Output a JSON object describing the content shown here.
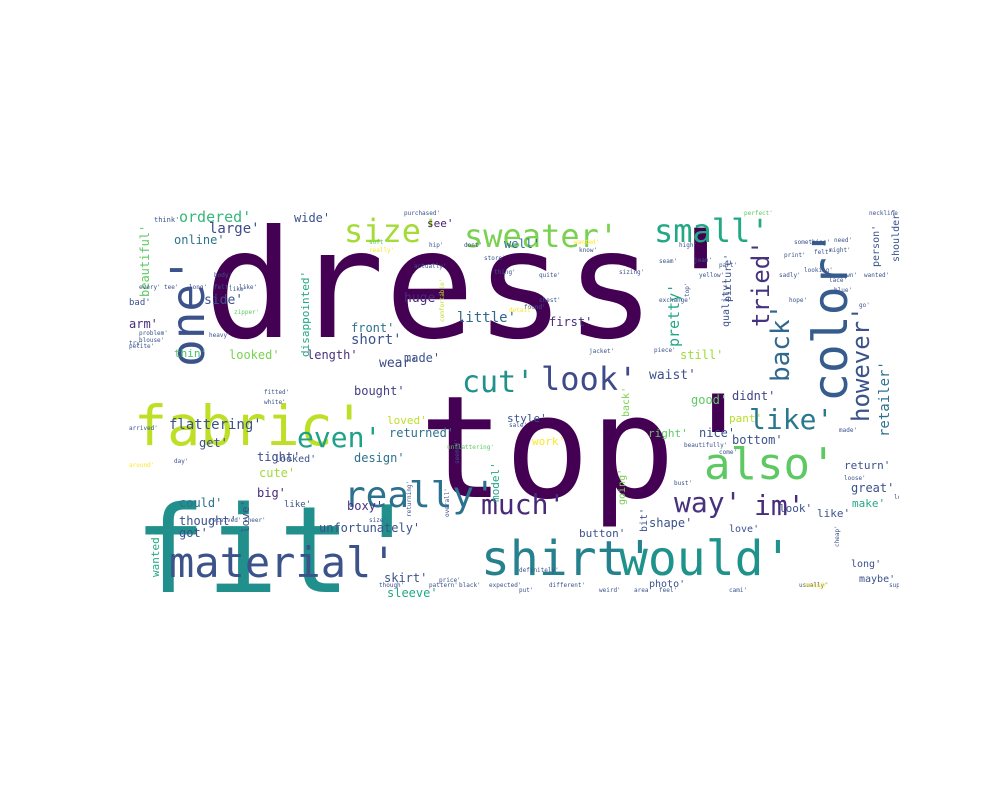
{
  "figure": {
    "words": [
      {
        "text": "dress'",
        "color": "#440154"
      },
      {
        "text": "top'",
        "color": "#440154"
      },
      {
        "text": "fit'",
        "color": "#21908c"
      },
      {
        "text": "fabric'",
        "color": "#bddf26"
      },
      {
        "text": "shirt'",
        "color": "#26818e"
      },
      {
        "text": "would'",
        "color": "#20928c"
      },
      {
        "text": "material'",
        "color": "#3b528b"
      },
      {
        "text": "color'",
        "color": "#365c8d"
      },
      {
        "text": "one'",
        "color": "#3b528b"
      },
      {
        "text": "also'",
        "color": "#5ec962"
      },
      {
        "text": "sweater'",
        "color": "#7ad151"
      },
      {
        "text": "small'",
        "color": "#22a884"
      },
      {
        "text": "size'",
        "color": "#a5db36"
      },
      {
        "text": "really'",
        "color": "#2c728e"
      },
      {
        "text": "much'",
        "color": "#482878"
      },
      {
        "text": "look'",
        "color": "#3e4a89"
      },
      {
        "text": "cut'",
        "color": "#21918c"
      },
      {
        "text": "way'",
        "color": "#46327e"
      },
      {
        "text": "im'",
        "color": "#472c7a"
      },
      {
        "text": "like'",
        "color": "#2a788e"
      },
      {
        "text": "even'",
        "color": "#1fa088"
      },
      {
        "text": "back'",
        "color": "#31688e"
      },
      {
        "text": "tried'",
        "color": "#46337f"
      },
      {
        "text": "however'",
        "color": "#3b528b"
      },
      {
        "text": "retailer'",
        "color": "#2c728e"
      },
      {
        "text": "ordered'",
        "color": "#35b779"
      },
      {
        "text": "large'",
        "color": "#3e4989"
      },
      {
        "text": "online'",
        "color": "#2c738e"
      },
      {
        "text": "wide'",
        "color": "#3b528b"
      },
      {
        "text": "beautiful'",
        "color": "#5ec962"
      },
      {
        "text": "side'",
        "color": "#3a538b"
      },
      {
        "text": "arm'",
        "color": "#472d7b"
      },
      {
        "text": "thin'",
        "color": "#4ac16d"
      },
      {
        "text": "short'",
        "color": "#3b528b"
      },
      {
        "text": "front'",
        "color": "#2c728e"
      },
      {
        "text": "huge'",
        "color": "#472a7a"
      },
      {
        "text": "little'",
        "color": "#31688e"
      },
      {
        "text": "pretty'",
        "color": "#22a884"
      },
      {
        "text": "well'",
        "color": "#2c728e"
      },
      {
        "text": "see'",
        "color": "#482173"
      },
      {
        "text": "quality'",
        "color": "#3b528b"
      },
      {
        "text": "first'",
        "color": "#472c7a"
      },
      {
        "text": "wear'",
        "color": "#3e4a89"
      },
      {
        "text": "made'",
        "color": "#3b528b"
      },
      {
        "text": "length'",
        "color": "#46327e"
      },
      {
        "text": "looked'",
        "color": "#7ad151"
      },
      {
        "text": "still'",
        "color": "#a0da39"
      },
      {
        "text": "waist'",
        "color": "#3b528b"
      },
      {
        "text": "didnt'",
        "color": "#414487"
      },
      {
        "text": "good'",
        "color": "#5ec962"
      },
      {
        "text": "bought'",
        "color": "#433e85"
      },
      {
        "text": "loved'",
        "color": "#bddf26"
      },
      {
        "text": "style'",
        "color": "#3b528b"
      },
      {
        "text": "flattering'",
        "color": "#3b528b"
      },
      {
        "text": "returned'",
        "color": "#2c728e"
      },
      {
        "text": "nice'",
        "color": "#3b528b"
      },
      {
        "text": "pant'",
        "color": "#b5de2b"
      },
      {
        "text": "bottom'",
        "color": "#3b528b"
      },
      {
        "text": "get'",
        "color": "#3b528b"
      },
      {
        "text": "design'",
        "color": "#2c728e"
      },
      {
        "text": "tight'",
        "color": "#3e4a89"
      },
      {
        "text": "work'",
        "color": "#fde725"
      },
      {
        "text": "right'",
        "color": "#5ec962"
      },
      {
        "text": "return'",
        "color": "#3b528b"
      },
      {
        "text": "great'",
        "color": "#3b528b"
      },
      {
        "text": "make'",
        "color": "#22a884"
      },
      {
        "text": "could'",
        "color": "#2c728e"
      },
      {
        "text": "big'",
        "color": "#482878"
      },
      {
        "text": "boxy'",
        "color": "#46327e"
      },
      {
        "text": "cute'",
        "color": "#a0da39"
      },
      {
        "text": "thought'",
        "color": "#3b528b"
      },
      {
        "text": "love'",
        "color": "#3b528b"
      },
      {
        "text": "got'",
        "color": "#3b528b"
      },
      {
        "text": "unfortunately'",
        "color": "#3b528b"
      },
      {
        "text": "skirt'",
        "color": "#3b528b"
      },
      {
        "text": "sleeve'",
        "color": "#22a884"
      },
      {
        "text": "button'",
        "color": "#3b528b"
      },
      {
        "text": "shape'",
        "color": "#3b528b"
      },
      {
        "text": "look'",
        "color": "#3b528b"
      },
      {
        "text": "like'",
        "color": "#3b528b"
      },
      {
        "text": "long'",
        "color": "#3b528b"
      },
      {
        "text": "maybe'",
        "color": "#3b528b"
      },
      {
        "text": "wanted'",
        "color": "#22a884"
      },
      {
        "text": "photo'",
        "color": "#3b528b"
      },
      {
        "text": "person'",
        "color": "#3b528b"
      },
      {
        "text": "shoulder'",
        "color": "#3b528b"
      },
      {
        "text": "picture'",
        "color": "#3b528b"
      },
      {
        "text": "disappointed'",
        "color": "#22a884"
      },
      {
        "text": "model'",
        "color": "#22a884"
      },
      {
        "text": "going'",
        "color": "#7ad151"
      },
      {
        "text": "back'",
        "color": "#7ad151"
      },
      {
        "text": "bit'",
        "color": "#3b528b"
      },
      {
        "text": "love'",
        "color": "#3b528b"
      },
      {
        "text": "looked'",
        "color": "#3b528b"
      },
      {
        "text": "like'",
        "color": "#3b528b"
      },
      {
        "text": "bad'",
        "color": "#3b528b"
      },
      {
        "text": "think'",
        "color": "#3b528b"
      },
      {
        "text": "soft'",
        "color": "#5ec962"
      },
      {
        "text": "really'",
        "color": "#fde725"
      },
      {
        "text": "wanted'",
        "color": "#fde725"
      },
      {
        "text": "purchased'",
        "color": "#3b528b"
      },
      {
        "text": "perfect'",
        "color": "#5ec962"
      },
      {
        "text": "neckline'",
        "color": "#3b528b"
      },
      {
        "text": "something'",
        "color": "#3b528b"
      },
      {
        "text": "felt'",
        "color": "#3b528b"
      },
      {
        "text": "like'",
        "color": "#3b528b"
      },
      {
        "text": "zipper'",
        "color": "#5ec962"
      },
      {
        "text": "actually'",
        "color": "#3b528b"
      },
      {
        "text": "thing'",
        "color": "#3b528b"
      },
      {
        "text": "found'",
        "color": "#3b528b"
      },
      {
        "text": "jacket'",
        "color": "#3b528b"
      },
      {
        "text": "comfortable'",
        "color": "#bddf26"
      },
      {
        "text": "problem'",
        "color": "#3b528b"
      },
      {
        "text": "petite'",
        "color": "#3b528b"
      },
      {
        "text": "fitted'",
        "color": "#3b528b"
      },
      {
        "text": "white'",
        "color": "#3b528b"
      },
      {
        "text": "arrived'",
        "color": "#3b528b"
      },
      {
        "text": "day'",
        "color": "#3b528b"
      },
      {
        "text": "around'",
        "color": "#fde725"
      },
      {
        "text": "received'",
        "color": "#3b528b"
      },
      {
        "text": "sheer'",
        "color": "#3b528b"
      },
      {
        "text": "seemed'",
        "color": "#3b528b"
      },
      {
        "text": "feel'",
        "color": "#3b528b"
      },
      {
        "text": "weird'",
        "color": "#3b528b"
      },
      {
        "text": "usually'",
        "color": "#3b528b"
      },
      {
        "text": "expected'",
        "color": "#3b528b"
      },
      {
        "text": "different'",
        "color": "#3b528b"
      },
      {
        "text": "though'",
        "color": "#3b528b"
      },
      {
        "text": "pattern'",
        "color": "#3b528b"
      },
      {
        "text": "black'",
        "color": "#3b528b"
      },
      {
        "text": "definitely'",
        "color": "#3b528b"
      },
      {
        "text": "unflattering'",
        "color": "#5ec962"
      },
      {
        "text": "loose'",
        "color": "#3b528b"
      },
      {
        "text": "made'",
        "color": "#3b528b"
      },
      {
        "text": "look'",
        "color": "#3b528b"
      },
      {
        "text": "enough'",
        "color": "#fde725"
      },
      {
        "text": "cheap'",
        "color": "#3b528b"
      },
      {
        "text": "overall'",
        "color": "#3b528b"
      },
      {
        "text": "body'",
        "color": "#3b528b"
      },
      {
        "text": "detail'",
        "color": "#fde725"
      },
      {
        "text": "store'",
        "color": "#3b528b"
      },
      {
        "text": "returning'",
        "color": "#3b528b"
      },
      {
        "text": "size'",
        "color": "#3b528b"
      },
      {
        "text": "price'",
        "color": "#3b528b"
      },
      {
        "text": "high'",
        "color": "#3b528b"
      },
      {
        "text": "jean'",
        "color": "#3b528b"
      },
      {
        "text": "might'",
        "color": "#3b528b"
      },
      {
        "text": "need'",
        "color": "#3b528b"
      },
      {
        "text": "heavy'",
        "color": "#3b528b"
      },
      {
        "text": "blouse'",
        "color": "#3b528b"
      },
      {
        "text": "try'",
        "color": "#3b528b"
      },
      {
        "text": "sale'",
        "color": "#3b528b"
      },
      {
        "text": "chest'",
        "color": "#3b528b"
      },
      {
        "text": "cami'",
        "color": "#3b528b"
      },
      {
        "text": "area'",
        "color": "#3b528b"
      },
      {
        "text": "put'",
        "color": "#3b528b"
      },
      {
        "text": "print'",
        "color": "#3b528b"
      },
      {
        "text": "sizing'",
        "color": "#3b528b"
      },
      {
        "text": "quite'",
        "color": "#3b528b"
      },
      {
        "text": "seam'",
        "color": "#3b528b"
      },
      {
        "text": "yellow'",
        "color": "#3b528b"
      },
      {
        "text": "top'",
        "color": "#3b528b"
      },
      {
        "text": "part'",
        "color": "#3b528b"
      },
      {
        "text": "looking'",
        "color": "#3b528b"
      },
      {
        "text": "go'",
        "color": "#3b528b"
      },
      {
        "text": "beautifully'",
        "color": "#3b528b"
      },
      {
        "text": "piece'",
        "color": "#3b528b"
      },
      {
        "text": "bust'",
        "color": "#3b528b"
      },
      {
        "text": "come'",
        "color": "#3b528b"
      },
      {
        "text": "sadly'",
        "color": "#3b528b"
      },
      {
        "text": "super'",
        "color": "#3b528b"
      },
      {
        "text": "hip'",
        "color": "#3b528b"
      },
      {
        "text": "dont'",
        "color": "#3b528b"
      },
      {
        "text": "know'",
        "color": "#3b528b"
      },
      {
        "text": "hope'",
        "color": "#3b528b"
      },
      {
        "text": "lace'",
        "color": "#3b528b"
      },
      {
        "text": "blue'",
        "color": "#3b528b"
      },
      {
        "text": "exchange'",
        "color": "#3b528b"
      },
      {
        "text": "sewn'",
        "color": "#3b528b"
      },
      {
        "text": "wanted'",
        "color": "#3b528b"
      },
      {
        "text": "every'",
        "color": "#3b528b"
      },
      {
        "text": "tee'",
        "color": "#3b528b"
      },
      {
        "text": "long'",
        "color": "#3b528b"
      },
      {
        "text": "felt'",
        "color": "#3b528b"
      },
      {
        "text": "like'",
        "color": "#3b528b"
      }
    ]
  }
}
